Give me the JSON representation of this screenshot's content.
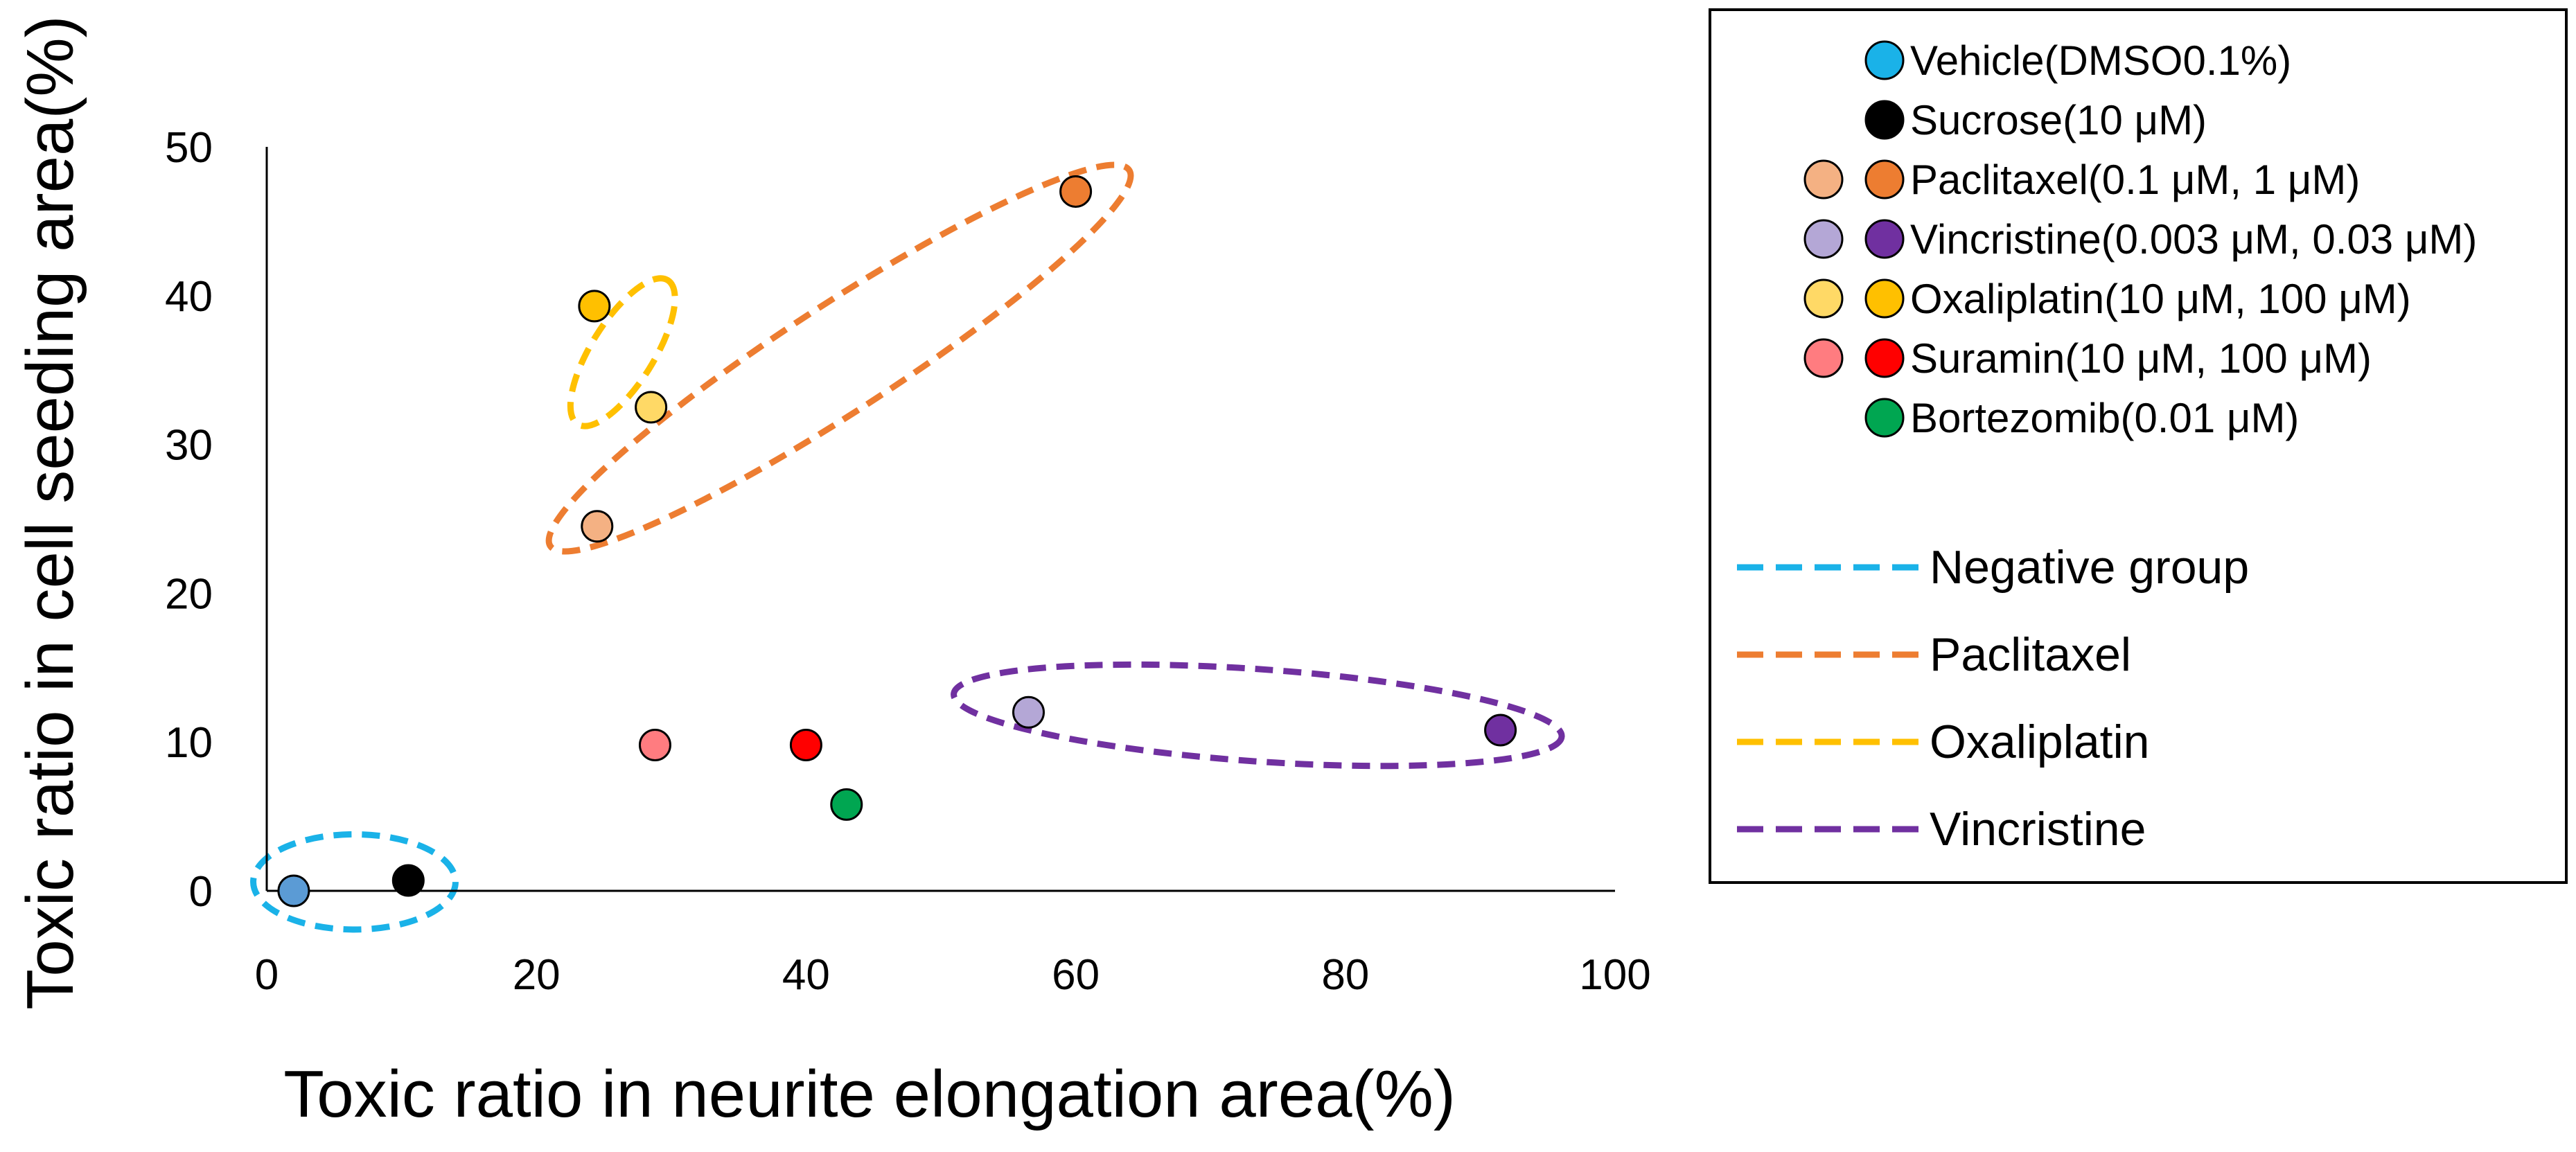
{
  "chart_data": {
    "type": "scatter",
    "xlabel": "Toxic ratio in neurite elongation area(%)",
    "ylabel": "Toxic ratio in cell seeding area(%)",
    "xlim": [
      0,
      100
    ],
    "ylim": [
      0,
      50
    ],
    "x_ticks": [
      0,
      20,
      40,
      60,
      80,
      100
    ],
    "y_ticks": [
      0,
      10,
      20,
      30,
      40,
      50
    ],
    "grid": false,
    "legend_position": "right",
    "points": [
      {
        "label": "Vehicle(DMSO0.1%)",
        "x": 2,
        "y": 0,
        "color": "#5b9bd5"
      },
      {
        "label": "Sucrose(10 μM)",
        "x": 10.5,
        "y": 0.7,
        "color": "#000000"
      },
      {
        "label": "Paclitaxel 0.1 μM",
        "x": 24.5,
        "y": 24.5,
        "color": "#f4b183"
      },
      {
        "label": "Paclitaxel 1 μM",
        "x": 60,
        "y": 47,
        "color": "#ed7d31"
      },
      {
        "label": "Vincristine 0.003 μM",
        "x": 56.5,
        "y": 12,
        "color": "#b4a7d6"
      },
      {
        "label": "Vincristine 0.03 μM",
        "x": 91.5,
        "y": 10.8,
        "color": "#7030a0"
      },
      {
        "label": "Oxaliplatin 10 μM",
        "x": 28.5,
        "y": 32.5,
        "color": "#ffd966"
      },
      {
        "label": "Oxaliplatin 100 μM",
        "x": 24.3,
        "y": 39.3,
        "color": "#ffc000"
      },
      {
        "label": "Suramin 10 μM",
        "x": 28.8,
        "y": 9.8,
        "color": "#ff7c80"
      },
      {
        "label": "Suramin 100 μM",
        "x": 40,
        "y": 9.8,
        "color": "#ff0000"
      },
      {
        "label": "Bortezomib(0.01 μM)",
        "x": 43,
        "y": 5.8,
        "color": "#00a651"
      }
    ],
    "groups": [
      {
        "name": "Negative group",
        "color": "#1ab2e8",
        "center": [
          6.5,
          0.6
        ],
        "semi_axes": [
          7.5,
          3.2
        ],
        "rotation_deg": 0
      },
      {
        "name": "Paclitaxel",
        "color": "#ed7d31",
        "center": [
          42.5,
          35.8
        ],
        "semi_axes": [
          25.6,
          3.6
        ],
        "rotation_deg": -33
      },
      {
        "name": "Oxaliplatin",
        "color": "#ffc000",
        "center": [
          26.4,
          36.2
        ],
        "semi_axes": [
          6.3,
          2.1
        ],
        "rotation_deg": -58
      },
      {
        "name": "Vincristine",
        "color": "#7030a0",
        "center": [
          73.5,
          11.8
        ],
        "semi_axes": [
          22.6,
          3.1
        ],
        "rotation_deg": 4
      }
    ],
    "legend": {
      "markers": [
        {
          "label": "Vehicle(DMSO0.1%)",
          "colors": [
            "#1ab2e8"
          ]
        },
        {
          "label": "Sucrose(10 μM)",
          "colors": [
            "#000000"
          ]
        },
        {
          "label": "Paclitaxel(0.1 μM, 1 μM)",
          "colors": [
            "#f4b183",
            "#ed7d31"
          ]
        },
        {
          "label": "Vincristine(0.003 μM, 0.03 μM)",
          "colors": [
            "#b4a7d6",
            "#7030a0"
          ]
        },
        {
          "label": "Oxaliplatin(10 μM, 100 μM)",
          "colors": [
            "#ffd966",
            "#ffc000"
          ]
        },
        {
          "label": "Suramin(10 μM, 100 μM)",
          "colors": [
            "#ff7c80",
            "#ff0000"
          ]
        },
        {
          "label": "Bortezomib(0.01 μM)",
          "colors": [
            "#00a651"
          ]
        }
      ],
      "lines": [
        {
          "label": "Negative group",
          "color": "#1ab2e8"
        },
        {
          "label": "Paclitaxel",
          "color": "#ed7d31"
        },
        {
          "label": "Oxaliplatin",
          "color": "#ffc000"
        },
        {
          "label": "Vincristine",
          "color": "#7030a0"
        }
      ]
    }
  }
}
